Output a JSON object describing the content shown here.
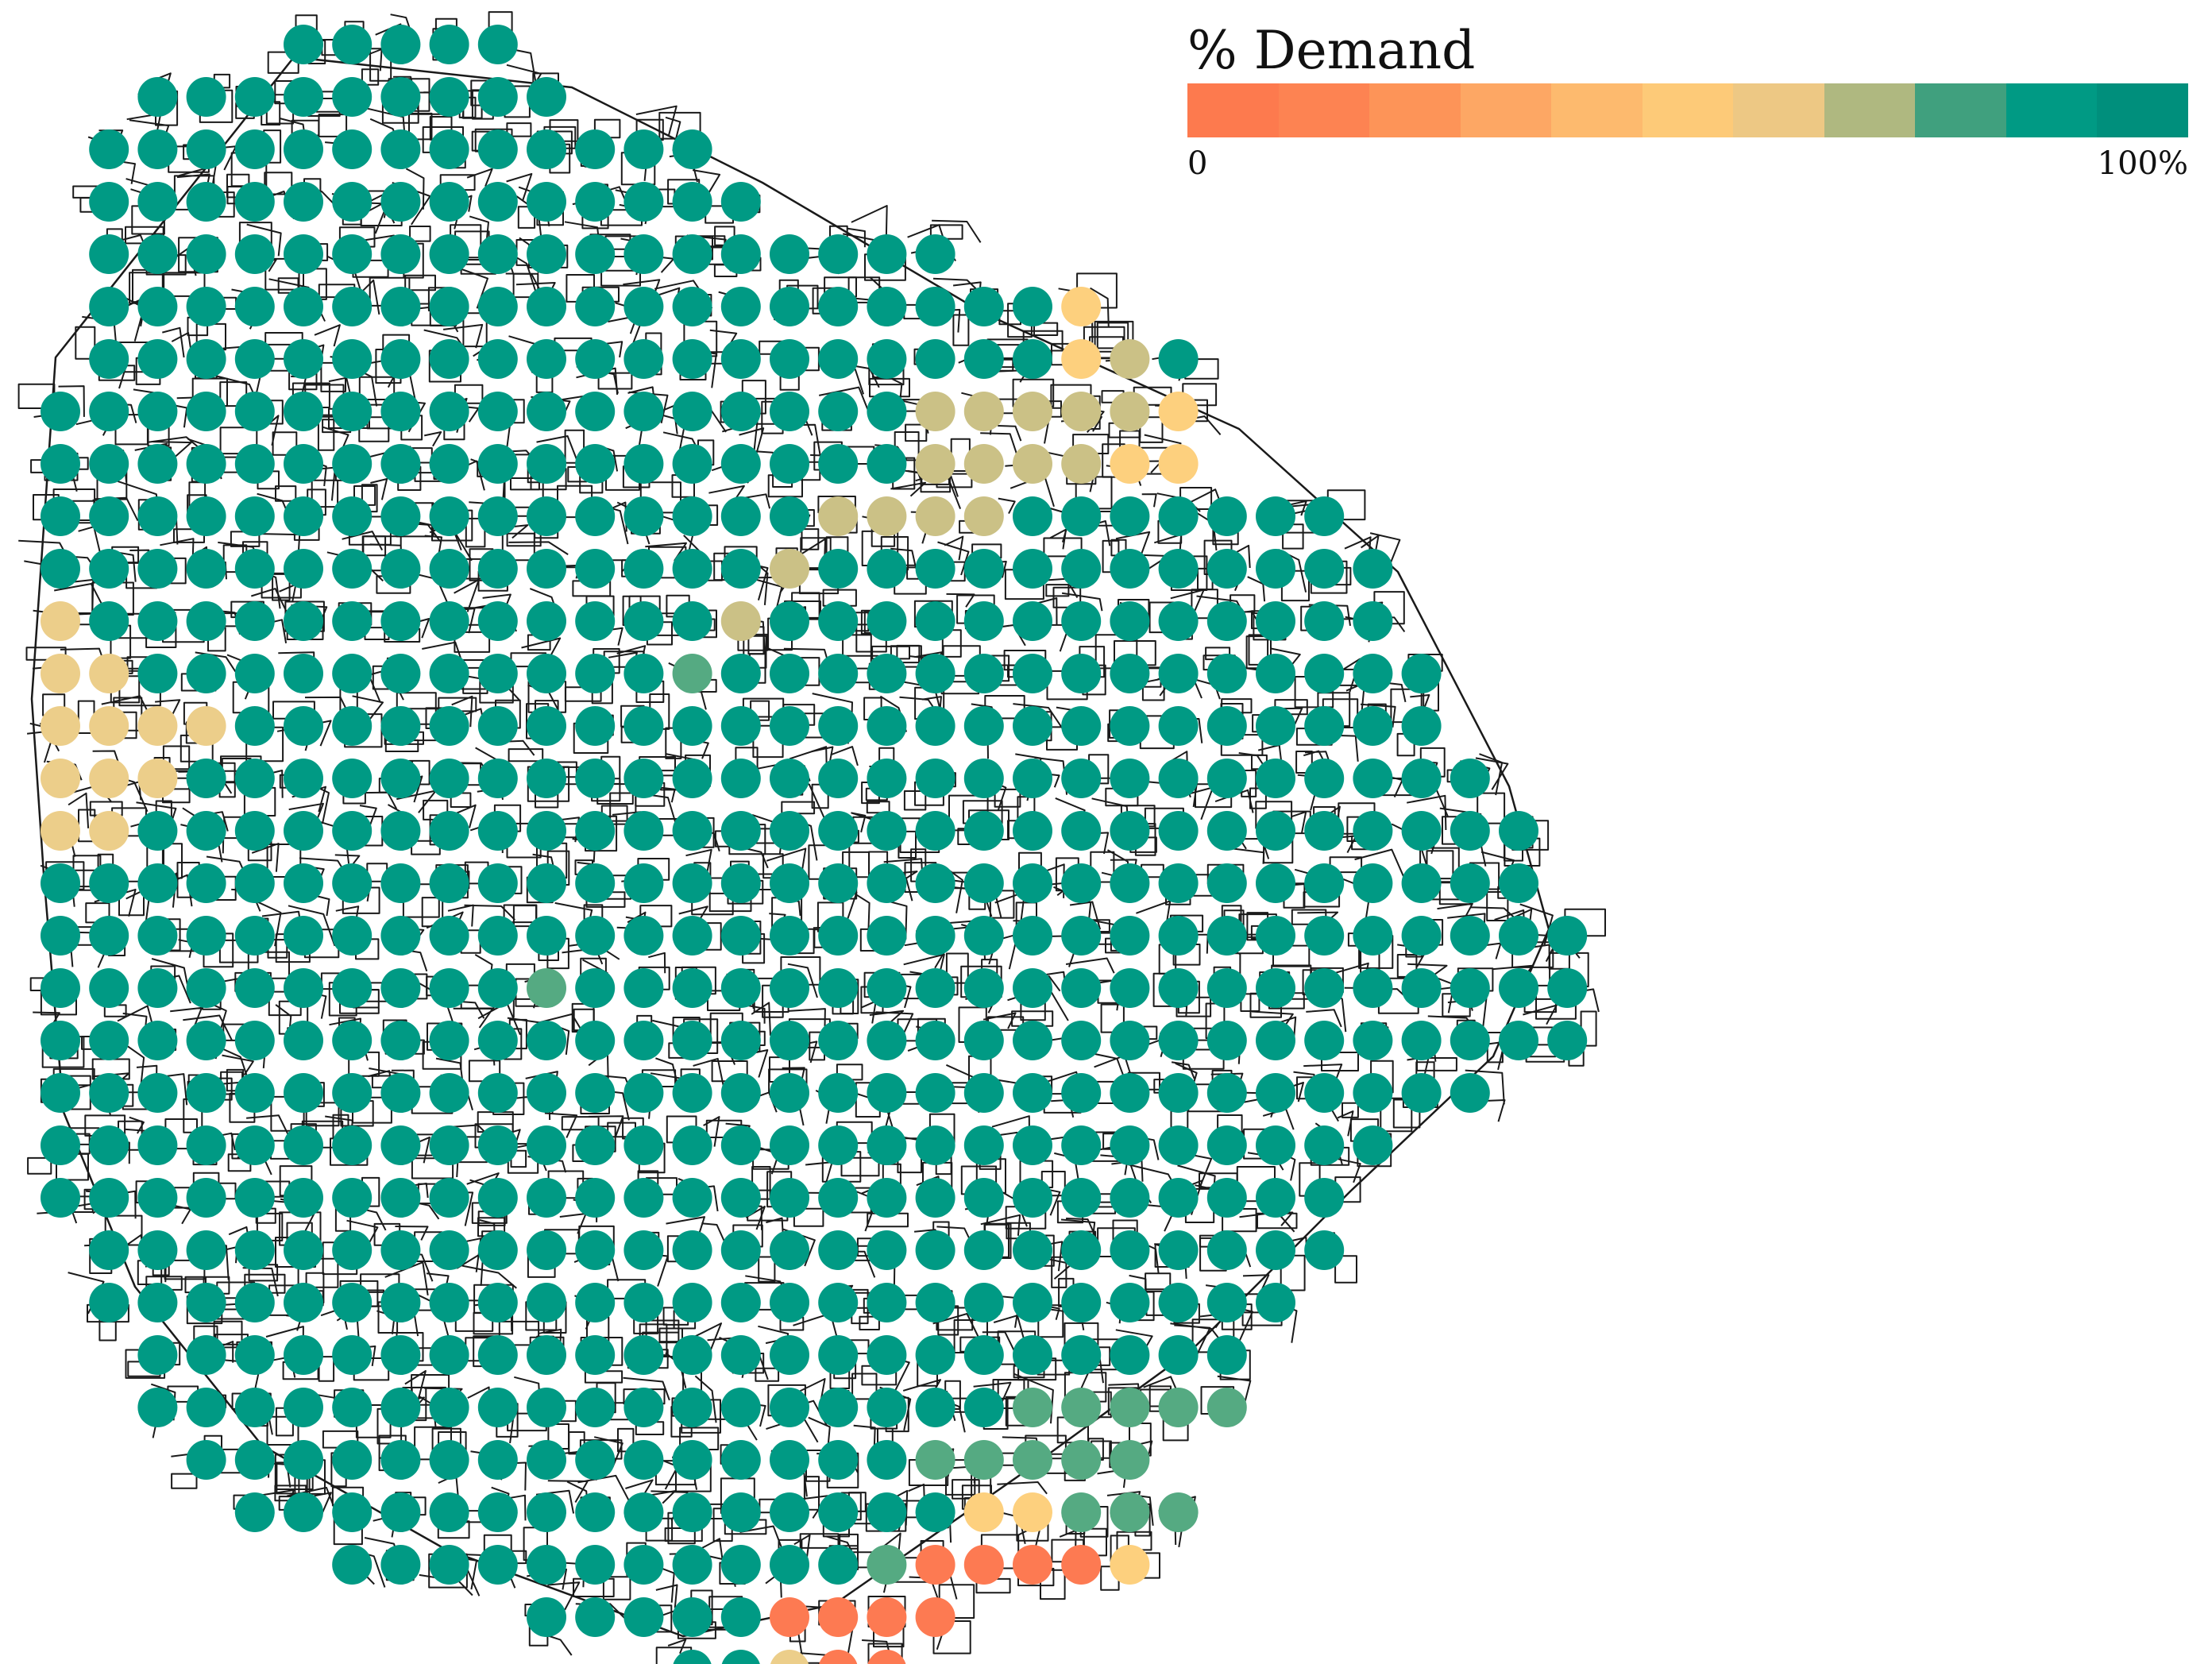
{
  "legend": {
    "title": "% Demand",
    "min_label": "0",
    "max_label": "100%",
    "scale_colors": [
      "#fd7a4e",
      "#fd8352",
      "#fd9458",
      "#fda764",
      "#fdba6e",
      "#fdca78",
      "#edc884",
      "#afb880",
      "#40a07e",
      "#009a84",
      "#008f7c"
    ]
  },
  "dots": {
    "rows": [
      {
        "start": 5,
        "codes": "aaaaa"
      },
      {
        "start": 2,
        "codes": "aaaaaaaaa"
      },
      {
        "start": 1,
        "codes": "aaaaaaaaaaaaa"
      },
      {
        "start": 1,
        "codes": "aaaaaaaaaaaaaa"
      },
      {
        "start": 1,
        "codes": "aaaaaaaaaaaaaaaaaa"
      },
      {
        "start": 1,
        "codes": "aaaaaaaaaaaaaaaaaaaay"
      },
      {
        "start": 1,
        "codes": "aaaaaaaaaaaaaaaaaaaayka"
      },
      {
        "start": 0,
        "codes": "aaaaaaaaaaaaaaaaaakkkkky"
      },
      {
        "start": 0,
        "codes": "aaaaaaaaaaaaaaaaaakkkkyy"
      },
      {
        "start": 0,
        "codes": "aaaaaaaaaaaaaaaakkkkaaaaaaa"
      },
      {
        "start": 0,
        "codes": "aaaaaaaaaaaaaaakaaaaaaaaaaaa"
      },
      {
        "start": 0,
        "codes": "saaaaaaaaaaaaakaaaaaaaaaaaaa"
      },
      {
        "start": 0,
        "codes": "ssaaaaaaaaaaagaaaaaaaaaaaaaaa"
      },
      {
        "start": 0,
        "codes": "ssssaaaaaaaaaaaaaaaaaaaaaaaaa"
      },
      {
        "start": 0,
        "codes": "sssaaaaaaaaaaaaaaaaaaaaaaaaaaa"
      },
      {
        "start": 0,
        "codes": "ssaaaaaaaaaaaaaaaaaaaaaaaaaaaaa"
      },
      {
        "start": 0,
        "codes": "aaaaaaaaaaaaaaaaaaaaaaaaaaaaaaa"
      },
      {
        "start": 0,
        "codes": "aaaaaaaaaaaaaaaaaaaaaaaaaaaaaaaa"
      },
      {
        "start": 0,
        "codes": "aaaaaaaaaagaaaaaaaaaaaaaaaaaaaaa"
      },
      {
        "start": 0,
        "codes": "aaaaaaaaaaaaaaaaaaaaaaaaaaaaaaaa"
      },
      {
        "start": 0,
        "codes": "aaaaaaaaaaaaaaaaaaaaaaaaaaaaaa"
      },
      {
        "start": 0,
        "codes": "aaaaaaaaaaaaaaaaaaaaaaaaaaaa"
      },
      {
        "start": 0,
        "codes": "aaaaaaaaaaaaaaaaaaaaaaaaaaa"
      },
      {
        "start": 1,
        "codes": "aaaaaaaaaaaaaaaaaaaaaaaaaa"
      },
      {
        "start": 1,
        "codes": "aaaaaaaaaaaaaaaaaaaaaaaaa"
      },
      {
        "start": 2,
        "codes": "aaaaaaaaaaaaaaaaaaaaaaa"
      },
      {
        "start": 2,
        "codes": "aaaaaaaaaaaaaaaaaaggggg"
      },
      {
        "start": 3,
        "codes": "aaaaaaaaaaaaaaaggggg"
      },
      {
        "start": 4,
        "codes": "aaaaaaaaaaaaaaayyggg"
      },
      {
        "start": 6,
        "codes": "aaaaaaaaaaagooooy"
      },
      {
        "start": 10,
        "codes": "aaaaaoooo"
      },
      {
        "start": 13,
        "codes": "aasoo"
      }
    ]
  }
}
